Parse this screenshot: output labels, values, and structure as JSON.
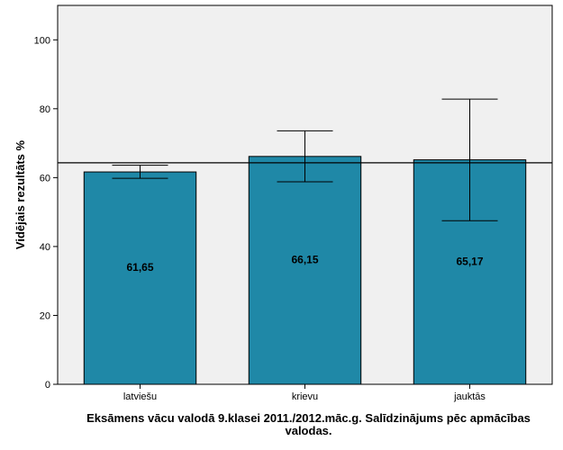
{
  "chart_data": {
    "type": "bar",
    "categories": [
      "latviešu",
      "krievu",
      "jauktās"
    ],
    "values": [
      61.65,
      66.15,
      65.17
    ],
    "value_labels": [
      "61,65",
      "66,15",
      "65,17"
    ],
    "error_low": [
      59.8,
      58.8,
      47.5
    ],
    "error_high": [
      63.6,
      73.6,
      82.8
    ],
    "reference_line": 64.3,
    "ylabel": "Vidējais rezultāts %",
    "xlabel": "Eksāmens vācu valodā 9.klasei 2011./2012.māc.g. Salīdzinājums pēc apmācības valodas.",
    "ylim": [
      0,
      110
    ],
    "yticks": [
      0,
      20,
      40,
      60,
      80,
      100
    ],
    "ytick_labels": [
      "0",
      "20",
      "40",
      "60",
      "80",
      "100"
    ],
    "bar_color": "#1f88a7",
    "plot_background": "#f0f0f0",
    "grid": false
  }
}
